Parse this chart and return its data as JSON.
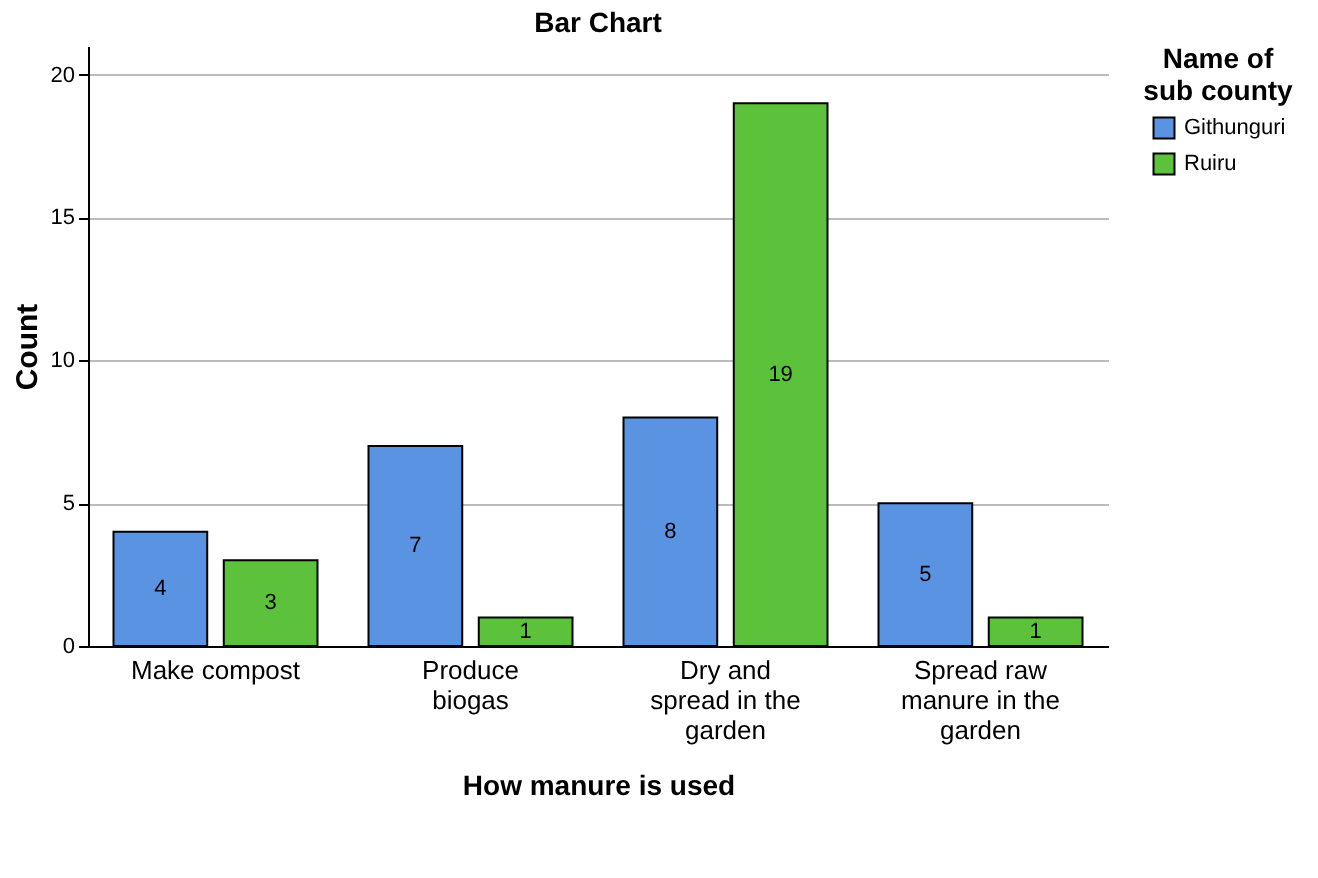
{
  "chart_data": {
    "type": "bar",
    "title": "Bar Chart",
    "xlabel": "How manure is used",
    "ylabel": "Count",
    "legend_title": "Name of sub county",
    "categories": [
      "Make compost",
      "Produce biogas",
      "Dry and spread in the garden",
      "Spread raw manure in the garden"
    ],
    "series": [
      {
        "name": "Githunguri",
        "color": "#5b93e3",
        "values": [
          4,
          7,
          8,
          5
        ]
      },
      {
        "name": "Ruiru",
        "color": "#5dc23b",
        "values": [
          3,
          1,
          19,
          1
        ]
      }
    ],
    "ylim": [
      0,
      21
    ],
    "yticks": [
      0,
      5,
      10,
      15,
      20
    ],
    "grid": "y",
    "legend": "top right",
    "data_labels": true
  }
}
